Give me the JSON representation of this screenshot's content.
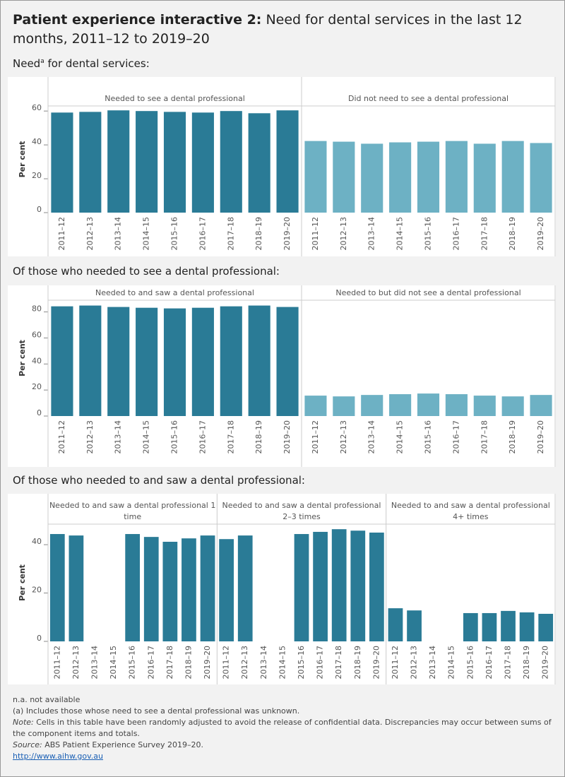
{
  "header": {
    "title_bold": "Patient experience interactive 2:",
    "title": "Need for dental services in the last 12 months, 2011–12 to 2019–20"
  },
  "chart_data": [
    {
      "type": "bar",
      "heading": "Need",
      "heading_sup": "a",
      "heading_rest": " for dental services:",
      "ylabel": "Per cent",
      "ylim": [
        0,
        63
      ],
      "yticks": [
        0,
        20,
        40,
        60
      ],
      "panels": [
        {
          "name": "Needed to see a dental professional",
          "color": "#2a7b96",
          "categories": [
            "2011–12",
            "2012–13",
            "2013–14",
            "2014–15",
            "2015–16",
            "2016–17",
            "2017–18",
            "2018–19",
            "2019–20"
          ],
          "values": [
            59.1,
            59.5,
            60.4,
            60.0,
            59.5,
            59.1,
            60.0,
            58.7,
            60.4
          ]
        },
        {
          "name": "Did not need to see a dental professional",
          "color": "#6db1c4",
          "categories": [
            "2011–12",
            "2012–13",
            "2013–14",
            "2014–15",
            "2015–16",
            "2016–17",
            "2017–18",
            "2018–19",
            "2019–20"
          ],
          "values": [
            42.3,
            41.9,
            40.7,
            41.5,
            41.9,
            42.3,
            40.7,
            42.3,
            41.1
          ]
        }
      ]
    },
    {
      "type": "bar",
      "heading": "Of those who needed to see a dental professional:",
      "ylabel": "Per cent",
      "ylim": [
        0,
        89
      ],
      "yticks": [
        0,
        20,
        40,
        60,
        80
      ],
      "panels": [
        {
          "name": "Needed to and saw a dental professional",
          "color": "#2a7b96",
          "categories": [
            "2011–12",
            "2012–13",
            "2013–14",
            "2014–15",
            "2015–16",
            "2016–17",
            "2017–18",
            "2018–19",
            "2019–20"
          ],
          "values": [
            84.3,
            84.9,
            83.8,
            83.2,
            82.7,
            83.2,
            84.3,
            84.9,
            83.8
          ]
        },
        {
          "name": "Needed to but did not see a dental professional",
          "color": "#6db1c4",
          "categories": [
            "2011–12",
            "2012–13",
            "2013–14",
            "2014–15",
            "2015–16",
            "2016–17",
            "2017–18",
            "2018–19",
            "2019–20"
          ],
          "values": [
            15.7,
            15.1,
            16.2,
            16.8,
            17.3,
            16.8,
            15.7,
            15.1,
            16.2
          ]
        }
      ]
    },
    {
      "type": "bar",
      "heading": "Of those who needed to and saw a dental professional:",
      "ylabel": "Per cent",
      "ylim": [
        0,
        48.5
      ],
      "yticks": [
        0,
        20,
        40
      ],
      "panels": [
        {
          "name": "Needed to and saw a dental professional 1 time",
          "color": "#2a7b96",
          "categories": [
            "2011–12",
            "2012–13",
            "2013–14",
            "2014–15",
            "2015–16",
            "2016–17",
            "2017–18",
            "2018–19",
            "2019–20"
          ],
          "values": [
            44.4,
            43.8,
            null,
            null,
            44.4,
            43.2,
            41.2,
            42.6,
            43.8
          ]
        },
        {
          "name": "Needed to and saw a dental professional 2–3 times",
          "color": "#2a7b96",
          "categories": [
            "2011–12",
            "2012–13",
            "2013–14",
            "2014–15",
            "2015–16",
            "2016–17",
            "2017–18",
            "2018–19",
            "2019–20"
          ],
          "values": [
            42.3,
            43.8,
            null,
            null,
            44.4,
            45.3,
            46.4,
            45.8,
            45.0
          ]
        },
        {
          "name": "Needed to and saw a dental professional 4+ times",
          "color": "#2a7b96",
          "categories": [
            "2011–12",
            "2012–13",
            "2013–14",
            "2014–15",
            "2015–16",
            "2016–17",
            "2017–18",
            "2018–19",
            "2019–20"
          ],
          "values": [
            13.7,
            12.8,
            null,
            null,
            11.7,
            11.7,
            12.6,
            12.0,
            11.4
          ]
        }
      ]
    }
  ],
  "footer": {
    "na": "n.a. not available",
    "note_a": "(a) Includes those whose need to see a dental professional was unknown.",
    "note_label": "Note:",
    "note": " Cells in this table have been randomly adjusted to avoid the release of confidential data. Discrepancies may occur between sums of the component items and totals.",
    "source_label": "Source:",
    "source": " ABS Patient Experience Survey 2019–20.",
    "link": "http://www.aihw.gov.au"
  }
}
